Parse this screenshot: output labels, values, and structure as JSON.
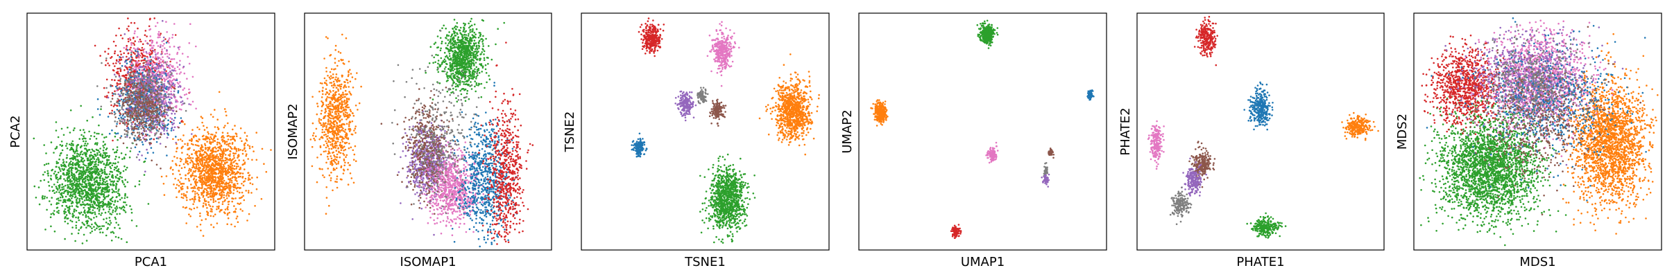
{
  "figure": {
    "colors": {
      "blue": "#1f77b4",
      "orange": "#ff7f0e",
      "green": "#2ca02c",
      "red": "#d62728",
      "purple": "#9467bd",
      "brown": "#8c564b",
      "pink": "#e377c2",
      "gray": "#7f7f7f"
    }
  },
  "chart_data": [
    {
      "type": "scatter",
      "xlabel": "PCA1",
      "ylabel": "PCA2",
      "ticks": false,
      "clusters": [
        {
          "color": "green",
          "cx": 0.24,
          "cy": 0.28,
          "sx": 0.075,
          "sy": 0.1,
          "n": 1400
        },
        {
          "color": "orange",
          "cx": 0.76,
          "cy": 0.33,
          "sx": 0.07,
          "sy": 0.09,
          "n": 1300
        },
        {
          "color": "red",
          "cx": 0.44,
          "cy": 0.73,
          "sx": 0.055,
          "sy": 0.1,
          "n": 550
        },
        {
          "color": "pink",
          "cx": 0.53,
          "cy": 0.72,
          "sx": 0.055,
          "sy": 0.1,
          "n": 550
        },
        {
          "color": "blue",
          "cx": 0.47,
          "cy": 0.63,
          "sx": 0.06,
          "sy": 0.09,
          "n": 450
        },
        {
          "color": "purple",
          "cx": 0.5,
          "cy": 0.65,
          "sx": 0.06,
          "sy": 0.09,
          "n": 400
        },
        {
          "color": "gray",
          "cx": 0.46,
          "cy": 0.62,
          "sx": 0.06,
          "sy": 0.08,
          "n": 350
        },
        {
          "color": "brown",
          "cx": 0.47,
          "cy": 0.6,
          "sx": 0.05,
          "sy": 0.07,
          "n": 300
        }
      ]
    },
    {
      "type": "scatter",
      "xlabel": "ISOMAP1",
      "ylabel": "ISOMAP2",
      "ticks": false,
      "clusters": [
        {
          "color": "green",
          "cx": 0.64,
          "cy": 0.82,
          "sx": 0.045,
          "sy": 0.07,
          "n": 900
        },
        {
          "color": "orange",
          "cx": 0.12,
          "cy": 0.55,
          "sx": 0.035,
          "sy": 0.12,
          "n": 700
        },
        {
          "color": "purple",
          "cx": 0.5,
          "cy": 0.37,
          "sx": 0.04,
          "sy": 0.07,
          "n": 600
        },
        {
          "color": "brown",
          "cx": 0.5,
          "cy": 0.42,
          "sx": 0.045,
          "sy": 0.1,
          "n": 450
        },
        {
          "color": "pink",
          "cx": 0.6,
          "cy": 0.25,
          "sx": 0.05,
          "sy": 0.07,
          "n": 700
        },
        {
          "color": "blue",
          "cx": 0.73,
          "cy": 0.3,
          "sx": 0.05,
          "sy": 0.12,
          "n": 700
        },
        {
          "color": "red",
          "cx": 0.82,
          "cy": 0.31,
          "sx": 0.035,
          "sy": 0.15,
          "n": 600
        },
        {
          "color": "gray",
          "cx": 0.55,
          "cy": 0.5,
          "sx": 0.07,
          "sy": 0.14,
          "n": 300
        }
      ]
    },
    {
      "type": "scatter",
      "xlabel": "TSNE1",
      "ylabel": "TSNE2",
      "ticks": false,
      "clusters": [
        {
          "color": "red",
          "cx": 0.28,
          "cy": 0.9,
          "sx": 0.018,
          "sy": 0.03,
          "n": 300
        },
        {
          "color": "pink",
          "cx": 0.57,
          "cy": 0.85,
          "sx": 0.022,
          "sy": 0.04,
          "n": 350
        },
        {
          "color": "purple",
          "cx": 0.42,
          "cy": 0.62,
          "sx": 0.015,
          "sy": 0.025,
          "n": 200
        },
        {
          "color": "gray",
          "cx": 0.49,
          "cy": 0.65,
          "sx": 0.009,
          "sy": 0.015,
          "n": 80
        },
        {
          "color": "brown",
          "cx": 0.55,
          "cy": 0.59,
          "sx": 0.013,
          "sy": 0.02,
          "n": 150
        },
        {
          "color": "orange",
          "cx": 0.86,
          "cy": 0.59,
          "sx": 0.035,
          "sy": 0.06,
          "n": 900
        },
        {
          "color": "blue",
          "cx": 0.23,
          "cy": 0.43,
          "sx": 0.012,
          "sy": 0.02,
          "n": 150
        },
        {
          "color": "green",
          "cx": 0.59,
          "cy": 0.21,
          "sx": 0.038,
          "sy": 0.065,
          "n": 1000
        }
      ]
    },
    {
      "type": "scatter",
      "xlabel": "UMAP1",
      "ylabel": "UMAP2",
      "ticks": false,
      "clusters": [
        {
          "color": "green",
          "cx": 0.52,
          "cy": 0.92,
          "sx": 0.014,
          "sy": 0.02,
          "n": 400
        },
        {
          "color": "orange",
          "cx": 0.08,
          "cy": 0.58,
          "sx": 0.013,
          "sy": 0.02,
          "n": 300
        },
        {
          "color": "blue",
          "cx": 0.94,
          "cy": 0.66,
          "sx": 0.006,
          "sy": 0.01,
          "n": 60
        },
        {
          "color": "pink",
          "cx": 0.54,
          "cy": 0.4,
          "sx": 0.009,
          "sy": 0.014,
          "n": 120
        },
        {
          "color": "brown",
          "cx": 0.78,
          "cy": 0.41,
          "sx": 0.005,
          "sy": 0.008,
          "n": 50
        },
        {
          "color": "gray",
          "cx": 0.76,
          "cy": 0.33,
          "sx": 0.004,
          "sy": 0.015,
          "n": 40
        },
        {
          "color": "purple",
          "cx": 0.76,
          "cy": 0.29,
          "sx": 0.006,
          "sy": 0.01,
          "n": 50
        },
        {
          "color": "red",
          "cx": 0.39,
          "cy": 0.07,
          "sx": 0.009,
          "sy": 0.012,
          "n": 80
        }
      ]
    },
    {
      "type": "scatter",
      "xlabel": "PHATE1",
      "ylabel": "PHATE2",
      "ticks": false,
      "clusters": [
        {
          "color": "red",
          "cx": 0.28,
          "cy": 0.9,
          "sx": 0.018,
          "sy": 0.035,
          "n": 250
        },
        {
          "color": "blue",
          "cx": 0.5,
          "cy": 0.6,
          "sx": 0.02,
          "sy": 0.04,
          "n": 300
        },
        {
          "color": "orange",
          "cx": 0.9,
          "cy": 0.52,
          "sx": 0.025,
          "sy": 0.02,
          "n": 250
        },
        {
          "color": "pink",
          "cx": 0.07,
          "cy": 0.45,
          "sx": 0.012,
          "sy": 0.04,
          "n": 200
        },
        {
          "color": "brown",
          "cx": 0.26,
          "cy": 0.36,
          "sx": 0.02,
          "sy": 0.03,
          "n": 250
        },
        {
          "color": "purple",
          "cx": 0.22,
          "cy": 0.29,
          "sx": 0.018,
          "sy": 0.03,
          "n": 200
        },
        {
          "color": "gray",
          "cx": 0.17,
          "cy": 0.19,
          "sx": 0.018,
          "sy": 0.025,
          "n": 180
        },
        {
          "color": "green",
          "cx": 0.52,
          "cy": 0.09,
          "sx": 0.025,
          "sy": 0.02,
          "n": 250
        }
      ]
    },
    {
      "type": "scatter",
      "xlabel": "MDS1",
      "ylabel": "MDS2",
      "ticks": false,
      "clusters": [
        {
          "color": "green",
          "cx": 0.3,
          "cy": 0.35,
          "sx": 0.1,
          "sy": 0.11,
          "n": 2400
        },
        {
          "color": "orange",
          "cx": 0.8,
          "cy": 0.45,
          "sx": 0.075,
          "sy": 0.13,
          "n": 2000
        },
        {
          "color": "red",
          "cx": 0.2,
          "cy": 0.7,
          "sx": 0.065,
          "sy": 0.08,
          "n": 900
        },
        {
          "color": "pink",
          "cx": 0.5,
          "cy": 0.72,
          "sx": 0.1,
          "sy": 0.1,
          "n": 1300
        },
        {
          "color": "purple",
          "cx": 0.46,
          "cy": 0.73,
          "sx": 0.12,
          "sy": 0.1,
          "n": 700
        },
        {
          "color": "blue",
          "cx": 0.55,
          "cy": 0.62,
          "sx": 0.14,
          "sy": 0.12,
          "n": 600
        },
        {
          "color": "brown",
          "cx": 0.5,
          "cy": 0.55,
          "sx": 0.12,
          "sy": 0.12,
          "n": 500
        },
        {
          "color": "gray",
          "cx": 0.48,
          "cy": 0.7,
          "sx": 0.1,
          "sy": 0.1,
          "n": 400
        }
      ]
    }
  ]
}
